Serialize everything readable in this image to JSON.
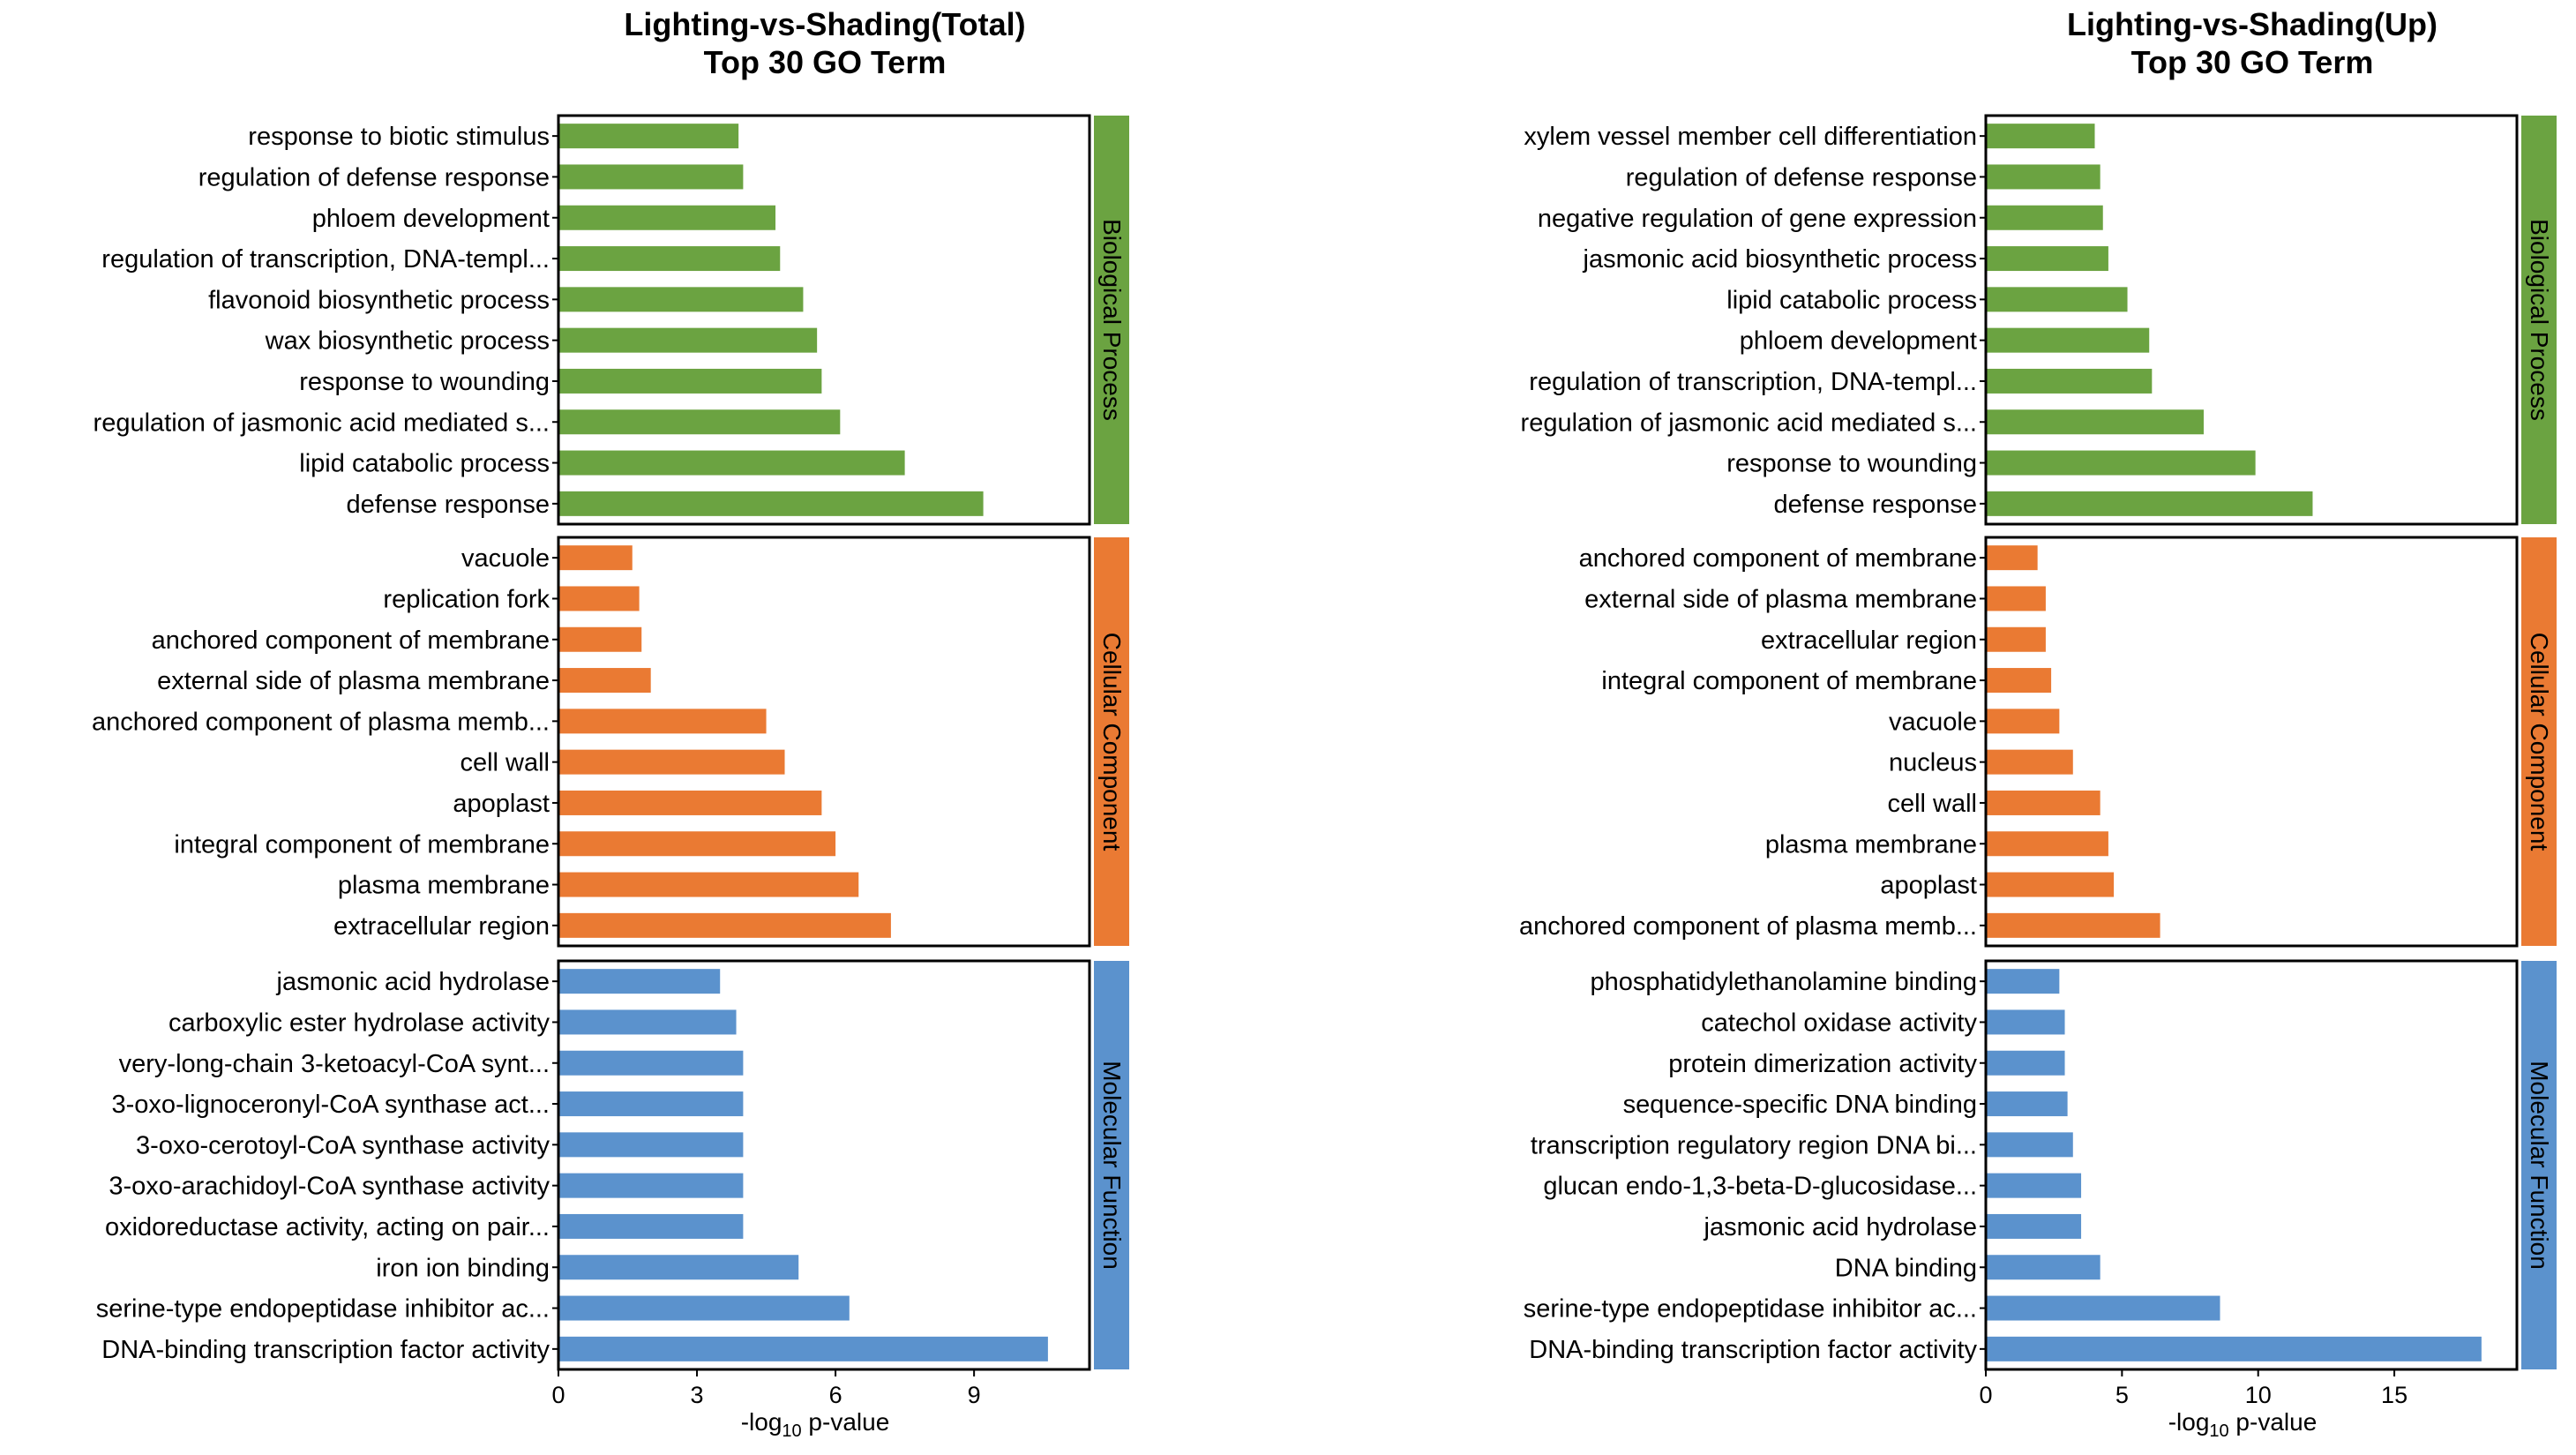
{
  "colors": {
    "bp": "#6ba341",
    "cc": "#ea7a33",
    "mf": "#5b92cd",
    "axis": "#000000"
  },
  "chart_data": [
    {
      "type": "bar",
      "orientation": "horizontal",
      "title": "Lighting-vs-Shading(Total)",
      "subtitle": "Top 30 GO Term",
      "xlabel_main": "-log",
      "xlabel_sub": "10",
      "xlabel_tail": " p-value",
      "xlim": [
        0,
        11.5
      ],
      "xticks": [
        0,
        3,
        6,
        9
      ],
      "facets": [
        {
          "label": "Biological Process",
          "color_key": "bp",
          "categories": [
            "response to biotic stimulus",
            "regulation of defense response",
            "phloem development",
            "regulation of transcription, DNA-templ...",
            "flavonoid biosynthetic process",
            "wax biosynthetic process",
            "response to wounding",
            "regulation of jasmonic acid mediated s...",
            "lipid catabolic process",
            "defense response"
          ],
          "values": [
            3.9,
            4.0,
            4.7,
            4.8,
            5.3,
            5.6,
            5.7,
            6.1,
            7.5,
            9.2
          ]
        },
        {
          "label": "Cellular Component",
          "color_key": "cc",
          "categories": [
            "vacuole",
            "replication fork",
            "anchored component of membrane",
            "external side of plasma membrane",
            "anchored component of plasma memb...",
            "cell wall",
            "apoplast",
            "integral component of membrane",
            "plasma membrane",
            "extracellular region"
          ],
          "values": [
            1.6,
            1.75,
            1.8,
            2.0,
            4.5,
            4.9,
            5.7,
            6.0,
            6.5,
            7.2
          ]
        },
        {
          "label": "Molecular Function",
          "color_key": "mf",
          "categories": [
            "jasmonic acid hydrolase",
            "carboxylic ester hydrolase activity",
            "very-long-chain 3-ketoacyl-CoA synt...",
            "3-oxo-lignoceronyl-CoA synthase act...",
            "3-oxo-cerotoyl-CoA synthase activity",
            "3-oxo-arachidoyl-CoA synthase activity",
            "oxidoreductase activity, acting on pair...",
            "iron ion binding",
            "serine-type endopeptidase inhibitor ac...",
            "DNA-binding transcription factor activity"
          ],
          "values": [
            3.5,
            3.85,
            4.0,
            4.0,
            4.0,
            4.0,
            4.0,
            5.2,
            6.3,
            10.6
          ]
        }
      ]
    },
    {
      "type": "bar",
      "orientation": "horizontal",
      "title": "Lighting-vs-Shading(Up)",
      "subtitle": "Top 30 GO Term",
      "xlabel_main": "-log",
      "xlabel_sub": "10",
      "xlabel_tail": " p-value",
      "xlim": [
        0,
        19.5
      ],
      "xticks": [
        0,
        5,
        10,
        15
      ],
      "facets": [
        {
          "label": "Biological Process",
          "color_key": "bp",
          "categories": [
            "xylem vessel member cell differentiation",
            "regulation of defense response",
            "negative regulation of gene expression",
            "jasmonic acid biosynthetic process",
            "lipid catabolic process",
            "phloem development",
            "regulation of transcription, DNA-templ...",
            "regulation of jasmonic acid mediated s...",
            "response to wounding",
            "defense response"
          ],
          "values": [
            4.0,
            4.2,
            4.3,
            4.5,
            5.2,
            6.0,
            6.1,
            8.0,
            9.9,
            12.0
          ]
        },
        {
          "label": "Cellular Component",
          "color_key": "cc",
          "categories": [
            "anchored component of membrane",
            "external side of plasma membrane",
            "extracellular region",
            "integral component of membrane",
            "vacuole",
            "nucleus",
            "cell wall",
            "plasma membrane",
            "apoplast",
            "anchored component of plasma memb..."
          ],
          "values": [
            1.9,
            2.2,
            2.2,
            2.4,
            2.7,
            3.2,
            4.2,
            4.5,
            4.7,
            6.4
          ]
        },
        {
          "label": "Molecular Function",
          "color_key": "mf",
          "categories": [
            "phosphatidylethanolamine binding",
            "catechol oxidase activity",
            "protein dimerization activity",
            "sequence-specific DNA binding",
            "transcription regulatory region DNA bi...",
            "glucan endo-1,3-beta-D-glucosidase...",
            "jasmonic acid hydrolase",
            "DNA binding",
            "serine-type endopeptidase inhibitor ac...",
            "DNA-binding transcription factor activity"
          ],
          "values": [
            2.7,
            2.9,
            2.9,
            3.0,
            3.2,
            3.5,
            3.5,
            4.2,
            8.6,
            18.2
          ]
        }
      ]
    }
  ]
}
